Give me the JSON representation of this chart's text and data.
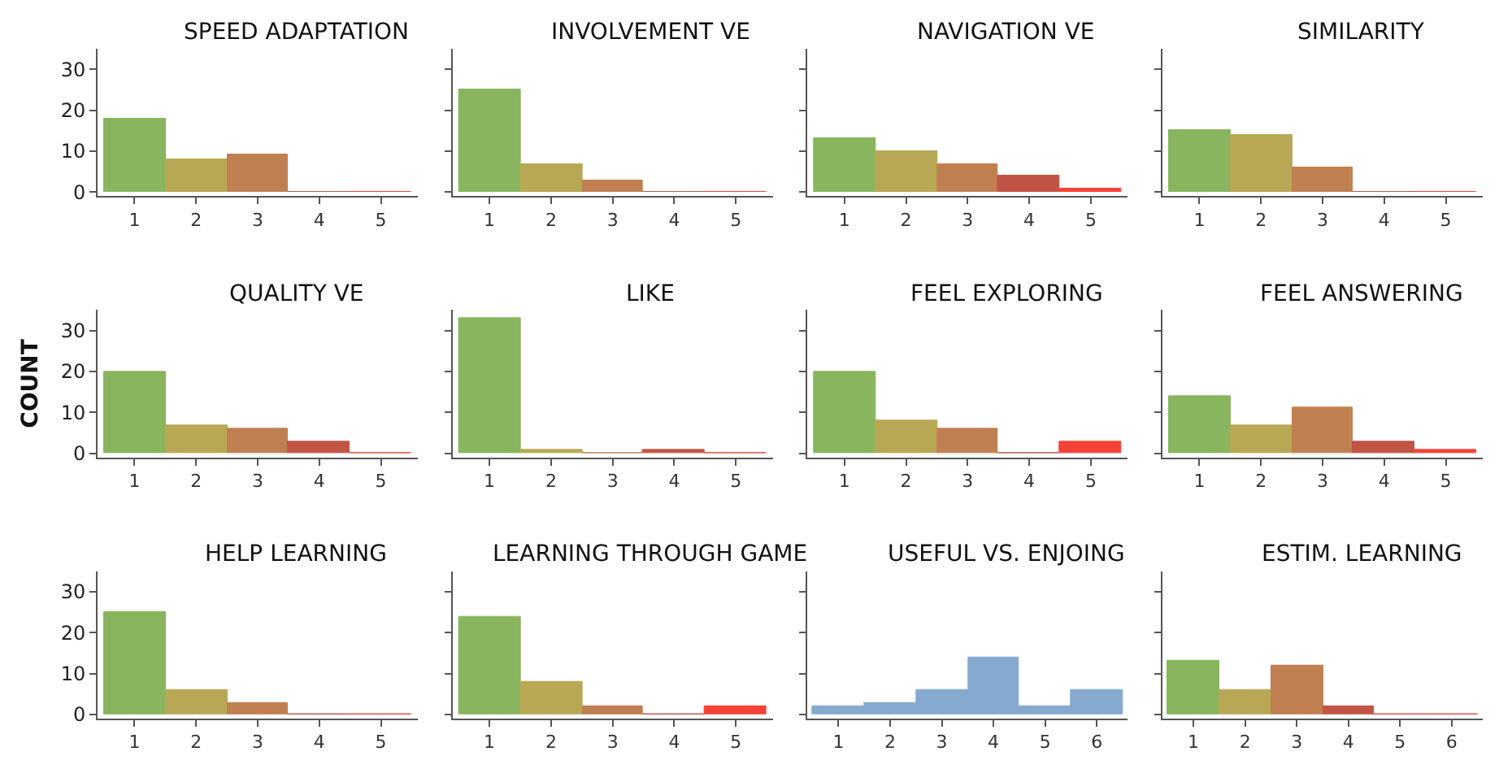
{
  "chart_data": [
    {
      "type": "bar",
      "title": "SPEED ADAPTATION",
      "categories": [
        "1",
        "2",
        "3",
        "4",
        "5"
      ],
      "values": [
        18,
        8,
        9,
        0,
        0
      ],
      "colors": [
        "#88b55d",
        "#b8a855",
        "#c07f50",
        "#c25445",
        "#f44336"
      ],
      "ylim": [
        -1,
        35
      ],
      "yticks": [
        0,
        10,
        20,
        30
      ]
    },
    {
      "type": "bar",
      "title": "INVOLVEMENT VE",
      "categories": [
        "1",
        "2",
        "3",
        "4",
        "5"
      ],
      "values": [
        25,
        7,
        3,
        0,
        0
      ],
      "colors": [
        "#88b55d",
        "#b8a855",
        "#c07f50",
        "#c25445",
        "#f44336"
      ],
      "ylim": [
        -1,
        35
      ],
      "yticks": [
        0,
        10,
        20,
        30
      ],
      "tick_labels": "x"
    },
    {
      "type": "bar",
      "title": "NAVIGATION VE",
      "categories": [
        "1",
        "2",
        "3",
        "4",
        "5"
      ],
      "values": [
        13,
        10,
        7,
        4,
        1
      ],
      "colors": [
        "#88b55d",
        "#b8a855",
        "#c07f50",
        "#c25445",
        "#f44336"
      ],
      "ylim": [
        -1,
        35
      ],
      "yticks": [
        0,
        10,
        20,
        30
      ],
      "tick_labels": "x"
    },
    {
      "type": "bar",
      "title": "SIMILARITY",
      "categories": [
        "1",
        "2",
        "3",
        "4",
        "5"
      ],
      "values": [
        15,
        14,
        6,
        0,
        0
      ],
      "colors": [
        "#88b55d",
        "#b8a855",
        "#c07f50",
        "#c25445",
        "#f44336"
      ],
      "ylim": [
        -1,
        35
      ],
      "yticks": [
        0,
        10,
        20,
        30
      ],
      "tick_labels": "x"
    },
    {
      "type": "bar",
      "title": "QUALITY VE",
      "ylabel": "COUNT",
      "categories": [
        "1",
        "2",
        "3",
        "4",
        "5"
      ],
      "values": [
        20,
        7,
        6,
        3,
        0
      ],
      "colors": [
        "#88b55d",
        "#b8a855",
        "#c07f50",
        "#c25445",
        "#f44336"
      ],
      "ylim": [
        -1,
        35
      ],
      "yticks": [
        0,
        10,
        20,
        30
      ]
    },
    {
      "type": "bar",
      "title": "LIKE",
      "categories": [
        "1",
        "2",
        "3",
        "4",
        "5"
      ],
      "values": [
        33,
        1,
        0,
        1,
        0
      ],
      "colors": [
        "#88b55d",
        "#b8a855",
        "#c07f50",
        "#c25445",
        "#f44336"
      ],
      "ylim": [
        -1,
        35
      ],
      "yticks": [
        0,
        10,
        20,
        30
      ],
      "tick_labels": "x"
    },
    {
      "type": "bar",
      "title": "FEEL EXPLORING",
      "categories": [
        "1",
        "2",
        "3",
        "4",
        "5"
      ],
      "values": [
        20,
        8,
        6,
        0,
        3
      ],
      "colors": [
        "#88b55d",
        "#b8a855",
        "#c07f50",
        "#c25445",
        "#f44336"
      ],
      "ylim": [
        -1,
        35
      ],
      "yticks": [
        0,
        10,
        20,
        30
      ],
      "tick_labels": "x"
    },
    {
      "type": "bar",
      "title": "FEEL ANSWERING",
      "categories": [
        "1",
        "2",
        "3",
        "4",
        "5"
      ],
      "values": [
        14,
        7,
        11,
        3,
        1
      ],
      "colors": [
        "#88b55d",
        "#b8a855",
        "#c07f50",
        "#c25445",
        "#f44336"
      ],
      "ylim": [
        -1,
        35
      ],
      "yticks": [
        0,
        10,
        20,
        30
      ],
      "tick_labels": "x"
    },
    {
      "type": "bar",
      "title": "HELP LEARNING",
      "categories": [
        "1",
        "2",
        "3",
        "4",
        "5"
      ],
      "values": [
        25,
        6,
        3,
        0,
        0
      ],
      "colors": [
        "#88b55d",
        "#b8a855",
        "#c07f50",
        "#c25445",
        "#f44336"
      ],
      "ylim": [
        -1,
        35
      ],
      "yticks": [
        0,
        10,
        20,
        30
      ]
    },
    {
      "type": "bar",
      "title": "LEARNING THROUGH GAME",
      "categories": [
        "1",
        "2",
        "3",
        "4",
        "5"
      ],
      "values": [
        24,
        8,
        2,
        0,
        2
      ],
      "colors": [
        "#88b55d",
        "#b8a855",
        "#c07f50",
        "#c25445",
        "#f44336"
      ],
      "ylim": [
        -1,
        35
      ],
      "yticks": [
        0,
        10,
        20,
        30
      ],
      "tick_labels": "x"
    },
    {
      "type": "bar",
      "title": "USEFUL VS. ENJOING",
      "categories": [
        "1",
        "2",
        "3",
        "4",
        "5",
        "6"
      ],
      "values": [
        2,
        3,
        6,
        14,
        2,
        6
      ],
      "colors": [
        "#86a9d0",
        "#86a9d0",
        "#86a9d0",
        "#86a9d0",
        "#86a9d0",
        "#86a9d0"
      ],
      "ylim": [
        -1,
        35
      ],
      "yticks": [
        0,
        10,
        20,
        30
      ],
      "tick_labels": "x"
    },
    {
      "type": "bar",
      "title": "ESTIM. LEARNING",
      "categories": [
        "1",
        "2",
        "3",
        "4",
        "5",
        "6"
      ],
      "values": [
        13,
        6,
        12,
        2,
        0,
        0
      ],
      "colors": [
        "#88b55d",
        "#b8a855",
        "#c07f50",
        "#c25445",
        "#f44336",
        "#f44336"
      ],
      "ylim": [
        -1,
        35
      ],
      "yticks": [
        0,
        10,
        20,
        30
      ],
      "tick_labels": "x"
    }
  ]
}
